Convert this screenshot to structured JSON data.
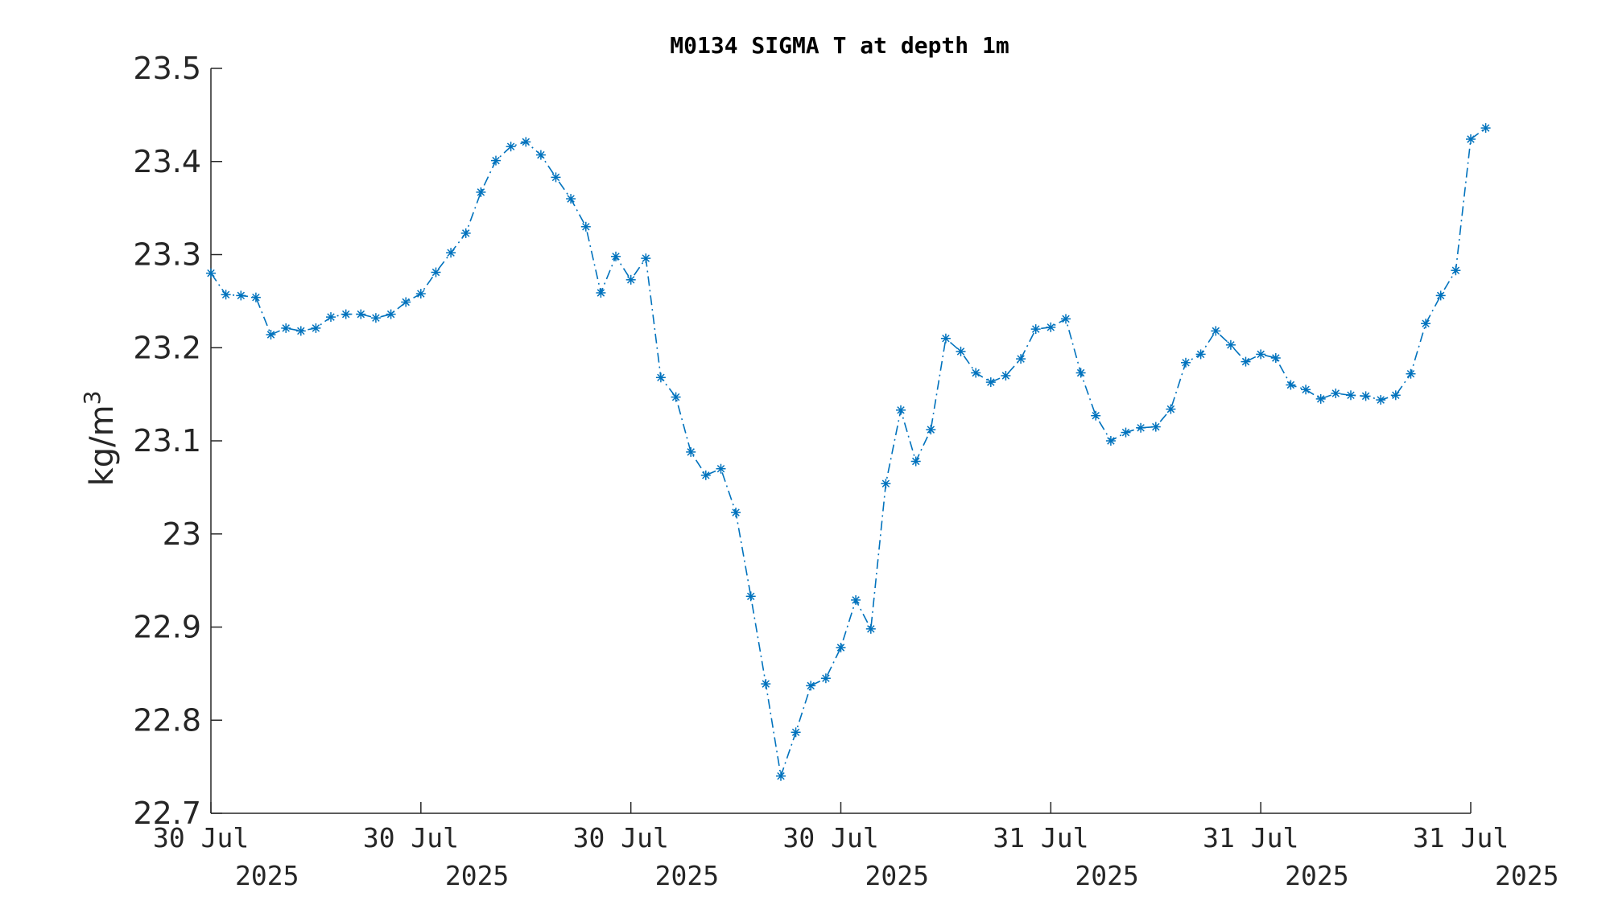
{
  "chart_data": {
    "type": "line",
    "title": "M0134 SIGMA T at depth 1m",
    "ylabel": "kg/m",
    "ylabel_sup": "3",
    "xlabel": "",
    "ylim": [
      22.7,
      23.5
    ],
    "yticks": [
      22.7,
      22.8,
      22.9,
      23,
      23.1,
      23.2,
      23.3,
      23.4,
      23.5
    ],
    "ytick_labels": [
      "22.7",
      "22.8",
      "22.9",
      "23",
      "23.1",
      "23.2",
      "23.3",
      "23.4",
      "23.5"
    ],
    "xlim": [
      0,
      84
    ],
    "xticks": [
      0,
      14,
      28,
      42,
      56,
      70,
      84
    ],
    "xtick_labels": [
      [
        "30 Jul",
        "2025"
      ],
      [
        "30 Jul",
        "2025"
      ],
      [
        "30 Jul",
        "2025"
      ],
      [
        "30 Jul",
        "2025"
      ],
      [
        "31 Jul",
        "2025"
      ],
      [
        "31 Jul",
        "2025"
      ],
      [
        "31 Jul",
        "2025"
      ]
    ],
    "grid": false,
    "series": [
      {
        "color": "#0072BD",
        "marker": "asterisk",
        "linestyle": "dash-dot",
        "values": [
          23.28,
          23.257,
          23.256,
          23.254,
          23.214,
          23.221,
          23.218,
          23.221,
          23.233,
          23.236,
          23.236,
          23.232,
          23.236,
          23.249,
          23.258,
          23.281,
          23.302,
          23.323,
          23.367,
          23.401,
          23.416,
          23.421,
          23.407,
          23.383,
          23.36,
          23.33,
          23.259,
          23.298,
          23.273,
          23.296,
          23.168,
          23.147,
          23.088,
          23.063,
          23.07,
          23.023,
          22.933,
          22.839,
          22.74,
          22.787,
          22.837,
          22.845,
          22.878,
          22.929,
          22.898,
          23.054,
          23.133,
          23.078,
          23.112,
          23.21,
          23.196,
          23.173,
          23.163,
          23.17,
          23.188,
          23.22,
          23.222,
          23.231,
          23.173,
          23.127,
          23.1,
          23.109,
          23.114,
          23.115,
          23.134,
          23.184,
          23.193,
          23.218,
          23.203,
          23.185,
          23.193,
          23.189,
          23.16,
          23.155,
          23.145,
          23.151,
          23.149,
          23.148,
          23.144,
          23.149,
          23.172,
          23.226,
          23.256,
          23.283,
          23.424,
          23.436
        ]
      }
    ]
  }
}
